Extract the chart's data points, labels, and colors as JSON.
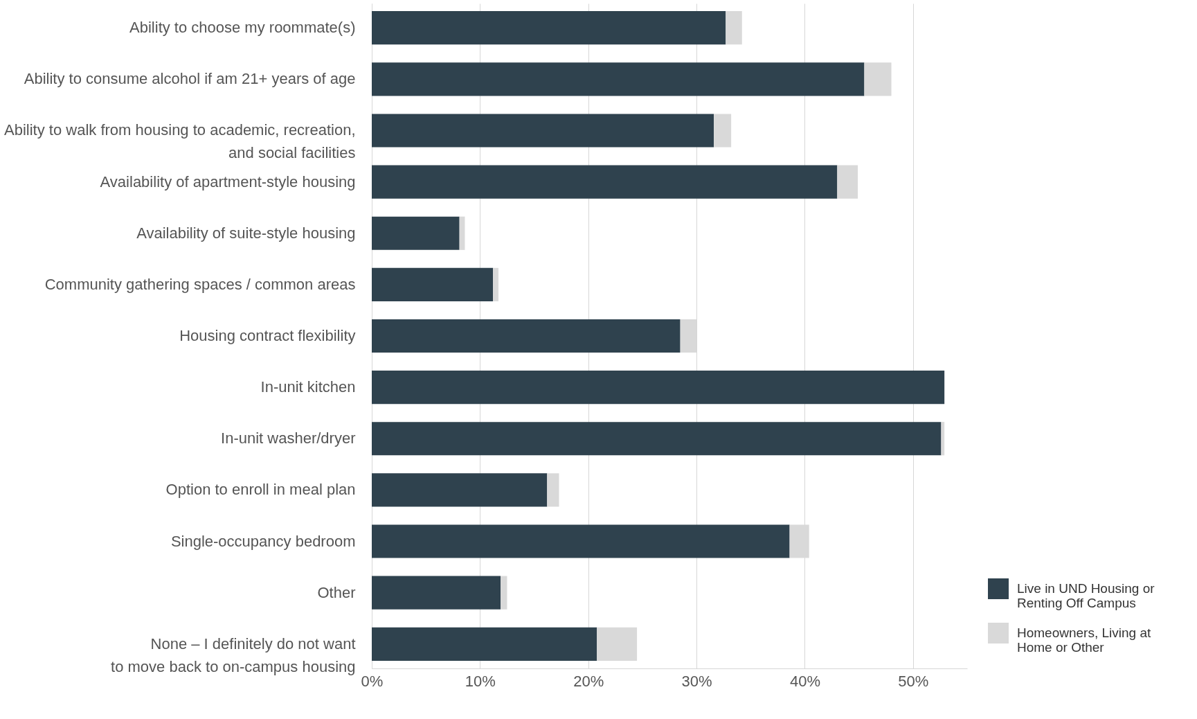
{
  "chart_data": {
    "type": "bar",
    "orientation": "horizontal",
    "stacked": true,
    "categories": [
      "Ability to choose my roommate(s)",
      "Ability to consume alcohol if am 21+ years of age",
      "Ability to walk from housing to academic, recreation,\nand social facilities",
      "Availability of apartment-style housing",
      "Availability of suite-style housing",
      "Community gathering spaces / common areas",
      "Housing contract flexibility",
      "In-unit kitchen",
      "In-unit washer/dryer",
      "Option to enroll in meal plan",
      "Single-occupancy bedroom",
      "Other",
      "None – I definitely do not want\nto move back to on-campus housing"
    ],
    "series": [
      {
        "name": "Live in UND Housing or\nRenting Off Campus",
        "color": "#2f424e",
        "values": [
          32.7,
          45.5,
          31.6,
          43.0,
          8.1,
          11.2,
          28.5,
          52.9,
          52.6,
          16.2,
          38.6,
          11.9,
          20.8
        ]
      },
      {
        "name": "Homeowners, Living at\nHome or Other",
        "color": "#d9d9d9",
        "values": [
          1.5,
          2.5,
          1.6,
          1.9,
          0.5,
          0.5,
          1.5,
          0.0,
          0.3,
          1.1,
          1.8,
          0.6,
          3.7
        ]
      }
    ],
    "xlim": [
      0,
      55
    ],
    "xticks": [
      {
        "value": 0,
        "label": "0%"
      },
      {
        "value": 10,
        "label": "10%"
      },
      {
        "value": 20,
        "label": "20%"
      },
      {
        "value": 30,
        "label": "30%"
      },
      {
        "value": 40,
        "label": "40%"
      },
      {
        "value": 50,
        "label": "50%"
      }
    ],
    "grid": "x",
    "legend": "bottom right"
  }
}
